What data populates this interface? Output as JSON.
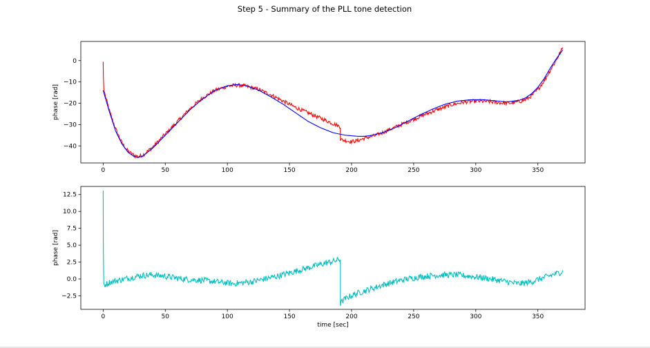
{
  "figure": {
    "title": "Step 5 - Summary of the PLL tone detection"
  },
  "chart_data": [
    {
      "type": "line",
      "title": "",
      "xlabel": "",
      "ylabel": "phase [rad]",
      "xlim": [
        -18,
        388
      ],
      "ylim": [
        -48,
        9
      ],
      "x_ticks": [
        0,
        50,
        100,
        150,
        200,
        250,
        300,
        350
      ],
      "y_ticks": [
        0,
        -10,
        -20,
        -30,
        -40
      ],
      "grid": false,
      "colors": {
        "measured": "#ff0000",
        "fit": "#0000ff"
      },
      "series": [
        {
          "color": "#ff0000",
          "x": [
            0,
            0.2,
            0.6,
            2,
            5,
            10,
            15,
            20,
            25,
            28,
            32,
            40,
            50,
            60,
            70,
            80,
            90,
            100,
            108,
            115,
            125,
            135,
            145,
            155,
            165,
            175,
            185,
            191,
            191.01,
            195,
            200,
            205,
            210,
            220,
            230,
            240,
            250,
            260,
            270,
            280,
            290,
            300,
            310,
            320,
            325,
            330,
            335,
            340,
            345,
            350,
            355,
            360,
            365,
            370
          ],
          "y": [
            -0.5,
            -8,
            -14,
            -17,
            -23.5,
            -32,
            -38.5,
            -42.5,
            -44.5,
            -45,
            -44.3,
            -40.5,
            -34.5,
            -28.5,
            -22.5,
            -17.5,
            -14,
            -12,
            -11.5,
            -12,
            -13.5,
            -16,
            -19,
            -22,
            -24.5,
            -27,
            -29.5,
            -31,
            -37,
            -37.5,
            -38,
            -37.5,
            -36.5,
            -35,
            -32.5,
            -30,
            -27.5,
            -25,
            -22.8,
            -20.8,
            -19.5,
            -19,
            -19.2,
            -19.8,
            -20,
            -19.8,
            -19.2,
            -18.3,
            -16.5,
            -13.5,
            -9.5,
            -4.5,
            0.5,
            6
          ]
        },
        {
          "color": "#0000ff",
          "x": [
            0,
            5,
            10,
            15,
            20,
            25,
            28,
            32,
            40,
            50,
            60,
            70,
            80,
            90,
            100,
            108,
            115,
            125,
            135,
            145,
            155,
            165,
            175,
            185,
            195,
            205,
            210,
            215,
            225,
            235,
            245,
            255,
            265,
            275,
            285,
            295,
            305,
            315,
            325,
            335,
            340,
            345,
            350,
            355,
            360,
            365,
            370
          ],
          "y": [
            -14,
            -24,
            -33,
            -39,
            -43,
            -45,
            -45.5,
            -44.7,
            -41,
            -35,
            -29,
            -23,
            -18,
            -14,
            -11.8,
            -11.2,
            -11.8,
            -13.8,
            -17,
            -20.5,
            -24.5,
            -28.5,
            -31.5,
            -33.8,
            -35,
            -35.5,
            -35.5,
            -35.2,
            -33.8,
            -31.5,
            -28.5,
            -25.5,
            -22.8,
            -20.5,
            -19,
            -18.4,
            -18.3,
            -18.8,
            -19.4,
            -18.6,
            -17.5,
            -15.5,
            -12.5,
            -8.5,
            -3.5,
            1,
            5
          ]
        }
      ]
    },
    {
      "type": "line",
      "title": "",
      "xlabel": "time [sec]",
      "ylabel": "phase [rad]",
      "xlim": [
        -18,
        388
      ],
      "ylim": [
        -4.5,
        13.7
      ],
      "x_ticks": [
        0,
        50,
        100,
        150,
        200,
        250,
        300,
        350
      ],
      "y_ticks": [
        -2.5,
        0.0,
        2.5,
        5.0,
        7.5,
        10.0,
        12.5
      ],
      "y_tick_labels": [
        "−2.5",
        "0.0",
        "2.5",
        "5.0",
        "7.5",
        "10.0",
        "12.5"
      ],
      "grid": false,
      "colors": {
        "residual": "#00bfbf"
      },
      "series": [
        {
          "color": "#00bfbf",
          "x": [
            0,
            0.15,
            0.5,
            1,
            5,
            10,
            20,
            30,
            40,
            50,
            60,
            70,
            80,
            90,
            100,
            105,
            110,
            120,
            130,
            140,
            150,
            160,
            170,
            180,
            185,
            191,
            191.01,
            193,
            197,
            205,
            215,
            225,
            235,
            245,
            255,
            265,
            275,
            285,
            295,
            305,
            315,
            325,
            330,
            335,
            340,
            345,
            350,
            355,
            360,
            365,
            370
          ],
          "y": [
            13.1,
            4,
            -0.7,
            -0.9,
            -0.5,
            -0.3,
            0.1,
            0.5,
            0.6,
            0.4,
            0.1,
            -0.1,
            -0.2,
            -0.4,
            -0.6,
            -0.7,
            -0.6,
            -0.4,
            0.0,
            0.4,
            0.9,
            1.4,
            1.9,
            2.4,
            2.6,
            2.9,
            -3.7,
            -3.2,
            -2.7,
            -2.1,
            -1.5,
            -0.9,
            -0.4,
            0.0,
            0.3,
            0.5,
            0.6,
            0.6,
            0.4,
            0.2,
            -0.1,
            -0.4,
            -0.6,
            -0.7,
            -0.6,
            -0.4,
            -0.1,
            0.2,
            0.5,
            0.8,
            1.1
          ]
        }
      ]
    }
  ]
}
